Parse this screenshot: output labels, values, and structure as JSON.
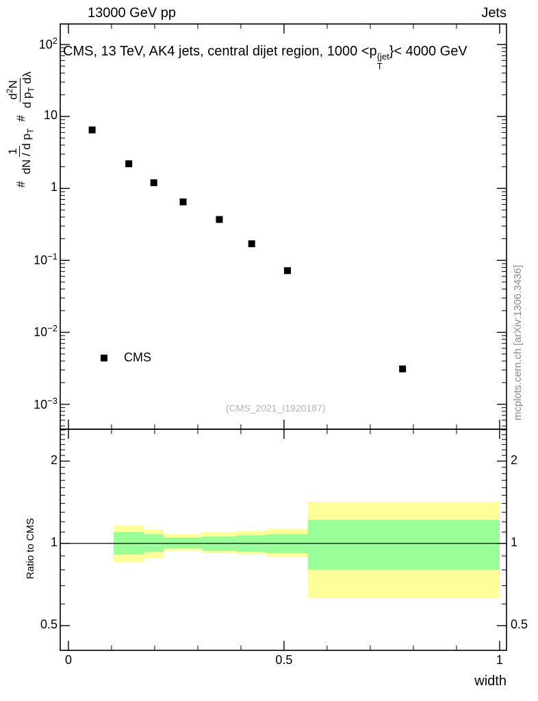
{
  "header": {
    "left": "13000 GeV pp",
    "right": "Jets"
  },
  "main": {
    "title": {
      "pre": "CMS, 13 TeV, AK4 jets, central dijet region, 1000 <p",
      "sup": "{jet",
      "sub": "T",
      "post": "}< 4000 GeV"
    },
    "ylabel": {
      "hash1": "#",
      "f1_num": "1",
      "f1_den_pre": "dN / d p",
      "f1_den_sub": "T",
      "hash2": "#",
      "f2_num_pre": "d",
      "f2_num_sup": "2",
      "f2_num_post": "N",
      "f2_den_pre": "d p",
      "f2_den_sub": "T",
      "f2_den_post": " dλ"
    },
    "legend_label": "CMS",
    "watermark": "(CMS_2021_I1920187)"
  },
  "ratio": {
    "ylabel": "Ratio to CMS"
  },
  "xlabel": "width",
  "right_label": "mcplots.cern.ch [arXiv:1306.3436]",
  "chart_data": [
    {
      "type": "scatter",
      "panel": "main",
      "series_name": "CMS",
      "x": [
        0.055,
        0.14,
        0.198,
        0.266,
        0.35,
        0.425,
        0.508,
        0.775
      ],
      "y": [
        6.5,
        2.2,
        1.2,
        0.65,
        0.37,
        0.17,
        0.072,
        0.0031
      ],
      "marker": "filled-square",
      "marker_color": "#000000",
      "xscale": "linear",
      "yscale": "log",
      "xlim": [
        -0.019,
        1.016
      ],
      "ylim": [
        0.00045,
        193
      ],
      "y_major_tick_exponents": [
        2,
        1,
        0,
        -1,
        -2,
        -3
      ],
      "x_major_ticks": [
        0,
        0.5,
        1
      ],
      "x_minor_tick_step": 0.1,
      "grid": false,
      "legend_position": "lower-left"
    },
    {
      "type": "ratio-band",
      "panel": "ratio",
      "yscale": "log",
      "ylim": [
        0.406,
        2.616
      ],
      "y_major_ticks": [
        2,
        1,
        0.5
      ],
      "reference_line_y": 1,
      "outer_band_color": "#ffff99",
      "inner_band_color": "#99ff99",
      "segments": [
        {
          "x0": 0.105,
          "x1": 0.175,
          "outer": [
            0.85,
            1.16
          ],
          "inner": [
            0.91,
            1.1
          ]
        },
        {
          "x0": 0.175,
          "x1": 0.22,
          "outer": [
            0.88,
            1.12
          ],
          "inner": [
            0.93,
            1.08
          ]
        },
        {
          "x0": 0.22,
          "x1": 0.31,
          "outer": [
            0.94,
            1.08
          ],
          "inner": [
            0.96,
            1.05
          ]
        },
        {
          "x0": 0.31,
          "x1": 0.39,
          "outer": [
            0.92,
            1.1
          ],
          "inner": [
            0.94,
            1.06
          ]
        },
        {
          "x0": 0.39,
          "x1": 0.46,
          "outer": [
            0.91,
            1.11
          ],
          "inner": [
            0.93,
            1.07
          ]
        },
        {
          "x0": 0.46,
          "x1": 0.555,
          "outer": [
            0.89,
            1.13
          ],
          "inner": [
            0.92,
            1.08
          ]
        },
        {
          "x0": 0.555,
          "x1": 1.0,
          "outer": [
            0.63,
            1.42
          ],
          "inner": [
            0.8,
            1.22
          ]
        }
      ]
    }
  ]
}
